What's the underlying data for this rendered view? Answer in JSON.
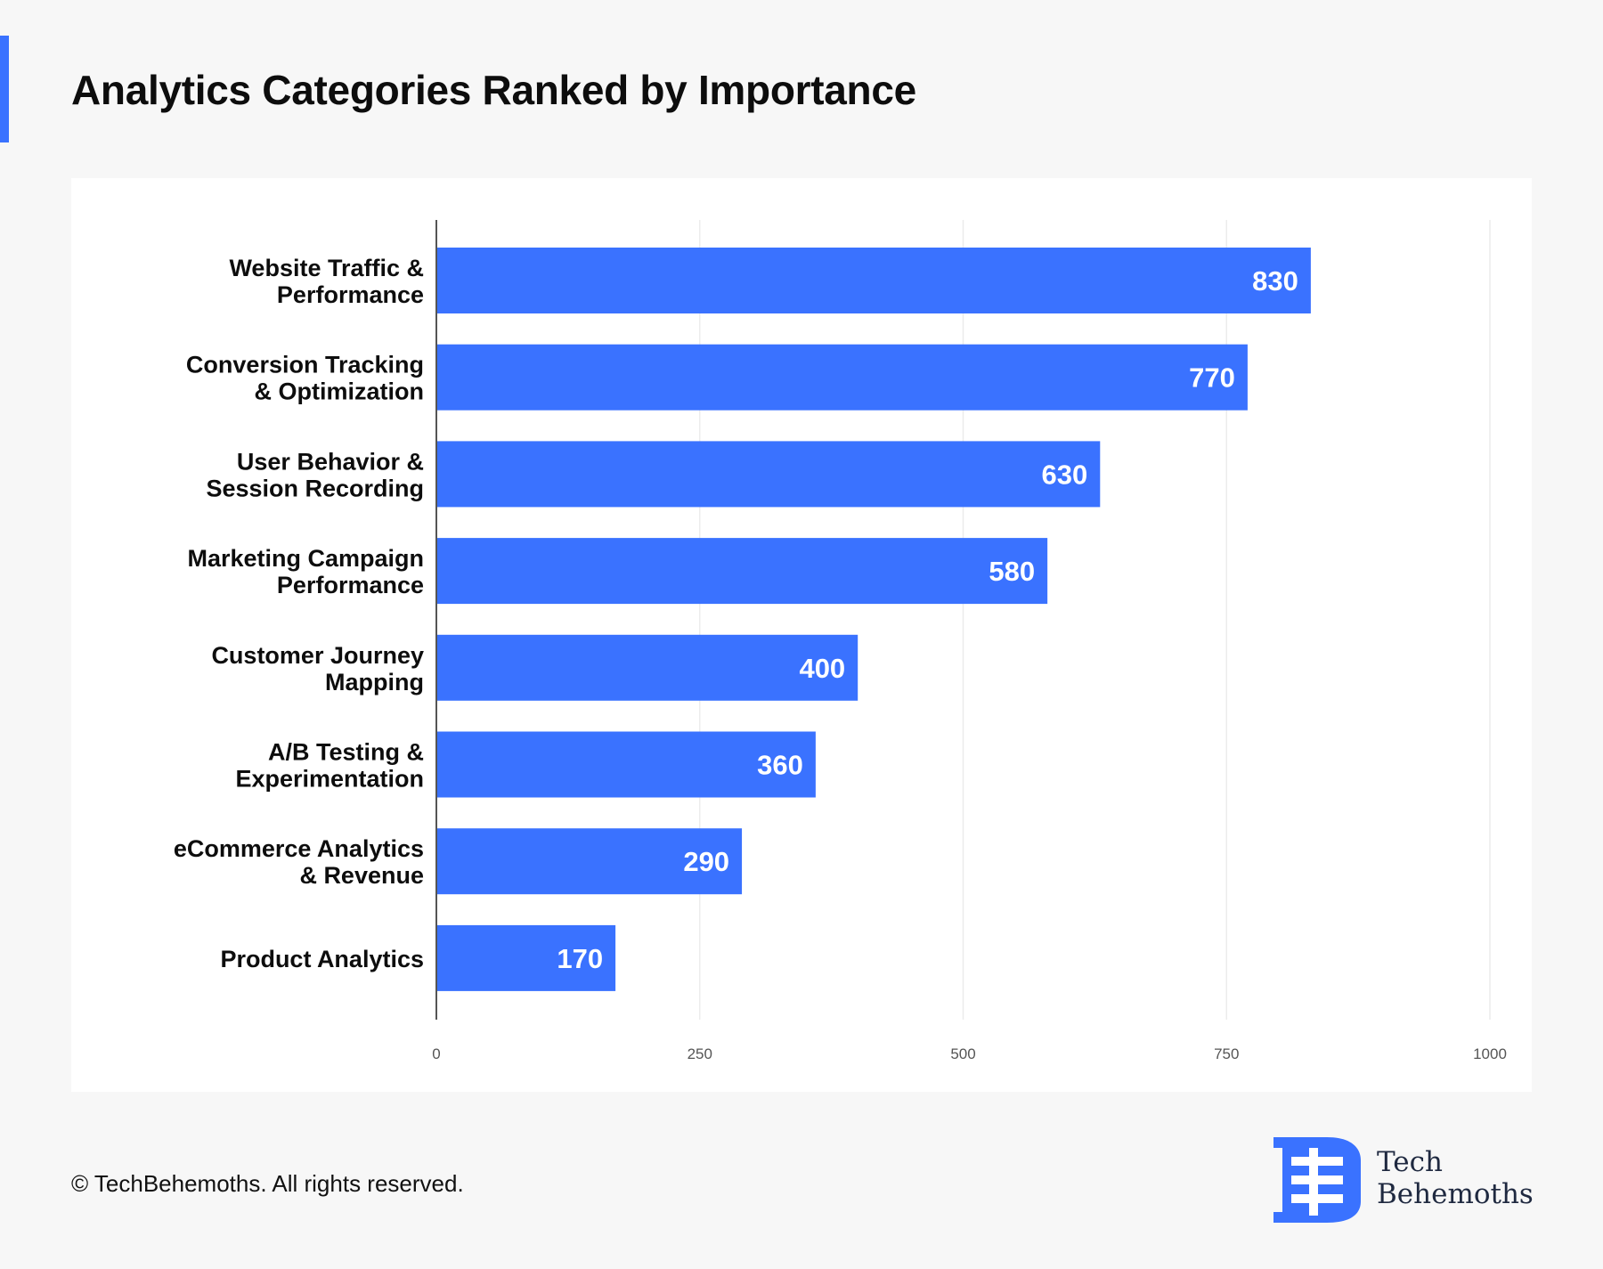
{
  "header": {
    "title": "Analytics Categories Ranked by Importance"
  },
  "footer": {
    "copyright": "© TechBehemoths. All rights reserved."
  },
  "brand": {
    "line1": "Tech",
    "line2": "Behemoths",
    "logo_icon": "tb-logo-icon"
  },
  "colors": {
    "accent": "#3a72ff",
    "bar": "#3a72ff",
    "bar_label": "#ffffff",
    "grid": "#ececec",
    "axis": "#555555"
  },
  "chart_data": {
    "type": "bar",
    "orientation": "horizontal",
    "categories": [
      [
        "Website Traffic &",
        "Performance"
      ],
      [
        "Conversion Tracking",
        "& Optimization"
      ],
      [
        "User Behavior &",
        "Session Recording"
      ],
      [
        "Marketing Campaign",
        "Performance"
      ],
      [
        "Customer Journey",
        "Mapping"
      ],
      [
        "A/B Testing &",
        "Experimentation"
      ],
      [
        "eCommerce Analytics",
        "& Revenue"
      ],
      [
        "Product Analytics"
      ]
    ],
    "values": [
      830,
      770,
      630,
      580,
      400,
      360,
      290,
      170
    ],
    "xlim": [
      0,
      1000
    ],
    "xticks": [
      0,
      250,
      500,
      750,
      1000
    ],
    "grid": true,
    "data_labels": true,
    "legend": "none"
  }
}
